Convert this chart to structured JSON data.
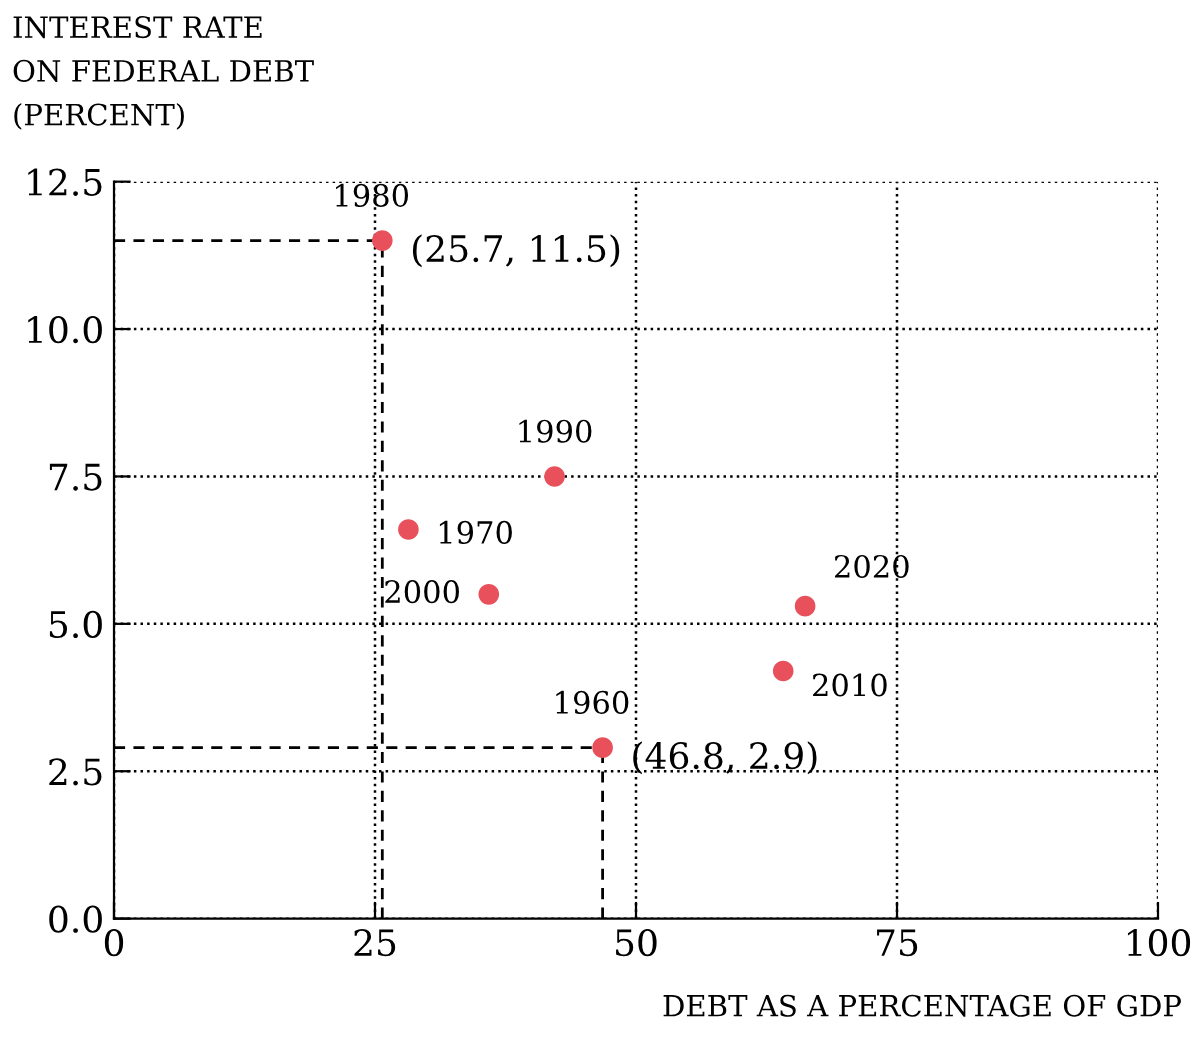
{
  "chart_data": {
    "type": "scatter",
    "ylabel": "INTEREST RATE\nON FEDERAL DEBT\n(PERCENT)",
    "xlabel": "DEBT AS A PERCENTAGE OF GDP",
    "x": [
      25.7,
      46.8,
      28.2,
      42.2,
      35.9,
      64.1,
      66.2
    ],
    "series": [
      {
        "color": "#e8505b",
        "values": [
          11.5,
          2.9,
          6.6,
          7.5,
          5.5,
          4.2,
          5.3
        ]
      }
    ],
    "marker": "circle",
    "grid": true,
    "xlim": [
      0,
      100
    ],
    "xticks": [
      0,
      25,
      50,
      75,
      100
    ],
    "ylim": [
      0,
      12.5
    ],
    "yticks": [
      {
        "value": 0,
        "label": "0.0"
      },
      {
        "value": 2.5,
        "label": "2.5"
      },
      {
        "value": 5,
        "label": "5.0"
      },
      {
        "value": 7.5,
        "label": "7.5"
      },
      {
        "value": 10,
        "label": "10.0"
      },
      {
        "value": 12.5,
        "label": "12.5"
      }
    ],
    "ref_lines": [
      {
        "axis": "x",
        "value": 25.7,
        "line_style": "dashed",
        "color": "#000000"
      },
      {
        "axis": "y",
        "value": 11.5,
        "line_style": "dashed",
        "color": "#000000"
      },
      {
        "axis": "x",
        "value": 46.8,
        "line_style": "dashed",
        "color": "#000000"
      },
      {
        "axis": "y",
        "value": 2.9,
        "line_style": "dashed",
        "color": "#000000"
      }
    ],
    "annotations": [
      {
        "text": "1980",
        "x": 25.7,
        "y": 11.5
      },
      {
        "text": "(25.7, 11.5)",
        "x": 25.7,
        "y": 11.5
      },
      {
        "text": "1960",
        "x": 46.8,
        "y": 2.9
      },
      {
        "text": "(46.8, 2.9)",
        "x": 46.8,
        "y": 2.9
      },
      {
        "text": "1970",
        "x": 28.2,
        "y": 6.6
      },
      {
        "text": "1990",
        "x": 42.2,
        "y": 7.5
      },
      {
        "text": "2000",
        "x": 35.9,
        "y": 5.5
      },
      {
        "text": "2010",
        "x": 64.1,
        "y": 4.2
      },
      {
        "text": "2020",
        "x": 66.2,
        "y": 5.3
      }
    ]
  }
}
